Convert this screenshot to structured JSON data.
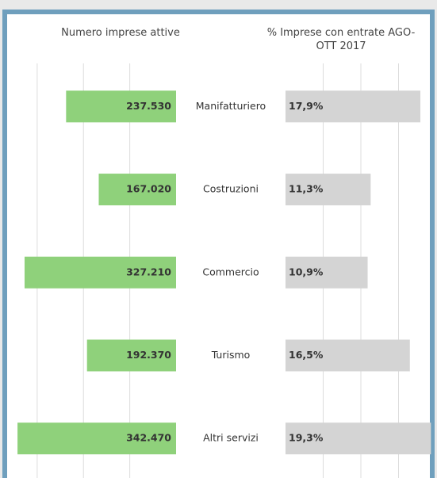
{
  "chart_data": {
    "type": "butterfly",
    "categories": [
      "Manifatturiero",
      "Costruzioni",
      "Commercio",
      "Turismo",
      "Altri servizi"
    ],
    "series": [
      {
        "name": "Numero imprese attive",
        "color": "#8fd17b",
        "values": [
          237530,
          167020,
          327210,
          192370,
          342470
        ],
        "value_labels": [
          "237.530",
          "167.020",
          "327.210",
          "192.370",
          "342.470"
        ],
        "xlim": [
          0,
          370000
        ],
        "xticks": [
          100000,
          200000,
          300000
        ]
      },
      {
        "name": "% Imprese con entrate AGO-OTT 2017",
        "color": "#d4d4d4",
        "values": [
          17.9,
          11.3,
          10.9,
          16.5,
          19.3
        ],
        "value_labels": [
          "17,9%",
          "11,3%",
          "10,9%",
          "16,5%",
          "19,3%"
        ],
        "xlim": [
          0,
          20
        ],
        "xticks": [
          5,
          10,
          15
        ]
      }
    ],
    "grid": true
  }
}
